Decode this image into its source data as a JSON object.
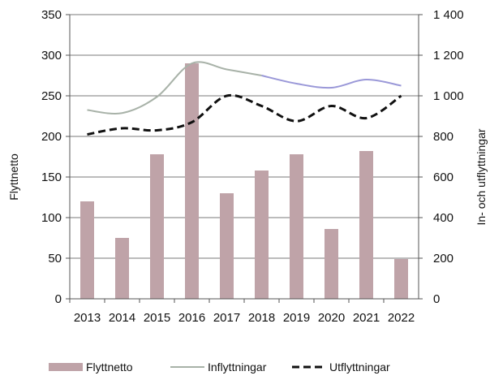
{
  "chart_data": {
    "type": "bar",
    "categories": [
      "2013",
      "2014",
      "2015",
      "2016",
      "2017",
      "2018",
      "2019",
      "2020",
      "2021",
      "2022"
    ],
    "ylabel": "Flyttnetto",
    "y2label": "In- och utflyttningar",
    "ylim": [
      0,
      350
    ],
    "y2lim": [
      0,
      1400
    ],
    "yticks": [
      "0",
      "50",
      "100",
      "150",
      "200",
      "250",
      "300",
      "350"
    ],
    "y2ticks": [
      "0",
      "200",
      "400",
      "600",
      "800",
      "1 000",
      "1 200",
      "1 400"
    ],
    "grid": true,
    "legend_position": "bottom",
    "series": [
      {
        "name": "Flyttnetto",
        "type": "bar",
        "axis": "left",
        "color": "#bfa3a8",
        "values": [
          120,
          75,
          178,
          290,
          130,
          158,
          178,
          86,
          182,
          49
        ]
      },
      {
        "name": "Inflyttningar",
        "type": "line",
        "axis": "right",
        "color": "#a8b2a8",
        "color2": "#9a98d8",
        "values": [
          930,
          915,
          995,
          1160,
          1130,
          1100,
          1060,
          1040,
          1080,
          1050
        ]
      },
      {
        "name": "Utflyttningar",
        "type": "line",
        "axis": "right",
        "color": "#111111",
        "dashed": true,
        "values": [
          810,
          840,
          830,
          870,
          1000,
          950,
          875,
          950,
          890,
          1000
        ]
      }
    ]
  }
}
